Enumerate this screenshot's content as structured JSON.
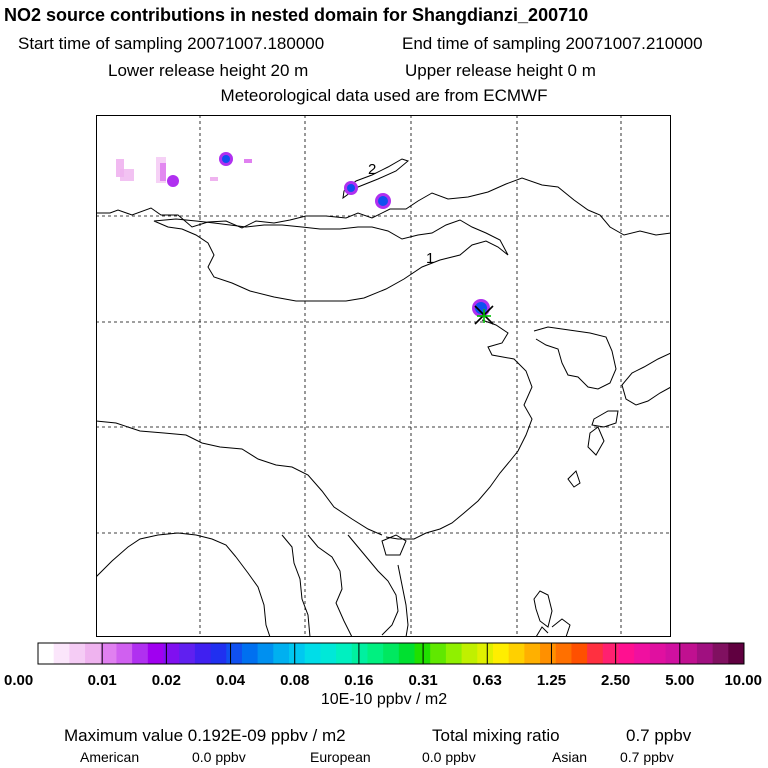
{
  "header": {
    "title": "NO2 source contributions in nested domain for Shangdianzi_200710",
    "start": "Start time of sampling 20071007.180000",
    "end": "End time of sampling 20071007.210000",
    "lower": "Lower release height   20 m",
    "upper": "Upper release height    0 m",
    "met": "Meteorological data used are from ECMWF"
  },
  "map": {
    "labels": [
      "1",
      "2"
    ],
    "station_marker": "x-cross-icon"
  },
  "scale": {
    "ticks": [
      "0.00",
      "0.01",
      "0.02",
      "0.04",
      "0.08",
      "0.16",
      "0.31",
      "0.63",
      "1.25",
      "2.50",
      "5.00",
      "10.00"
    ],
    "colors": [
      "#ffffff",
      "#fbe6fb",
      "#f5ccf5",
      "#efb3ef",
      "#e080f0",
      "#d060f0",
      "#b030f0",
      "#a000f0",
      "#8010f0",
      "#6020f0",
      "#4020f0",
      "#2030f0",
      "#1050f0",
      "#0070f0",
      "#0090f0",
      "#00b0f0",
      "#00c8f0",
      "#00dde8",
      "#00e8d8",
      "#00f0c0",
      "#00f0a0",
      "#00f080",
      "#00e860",
      "#00e030",
      "#20e000",
      "#60e800",
      "#90f000",
      "#c0f000",
      "#e0f000",
      "#ffee00",
      "#ffd000",
      "#ffb000",
      "#ff9000",
      "#ff7000",
      "#ff5000",
      "#ff3040",
      "#ff2070",
      "#ff1090",
      "#f010a0",
      "#e010a0",
      "#d010a0",
      "#c01090",
      "#a01080",
      "#801060",
      "#600040"
    ],
    "unit": "10E-10 ppbv / m2"
  },
  "stats": {
    "max_label": "Maximum value  0.192E-09 ppbv / m2",
    "total_label": "Total mixing ratio",
    "total_value": "0.7 ppbv",
    "american_label": "American",
    "american_value": "0.0 ppbv",
    "european_label": "European",
    "european_value": "0.0 ppbv",
    "asian_label": "Asian",
    "asian_value": "0.7 ppbv"
  }
}
